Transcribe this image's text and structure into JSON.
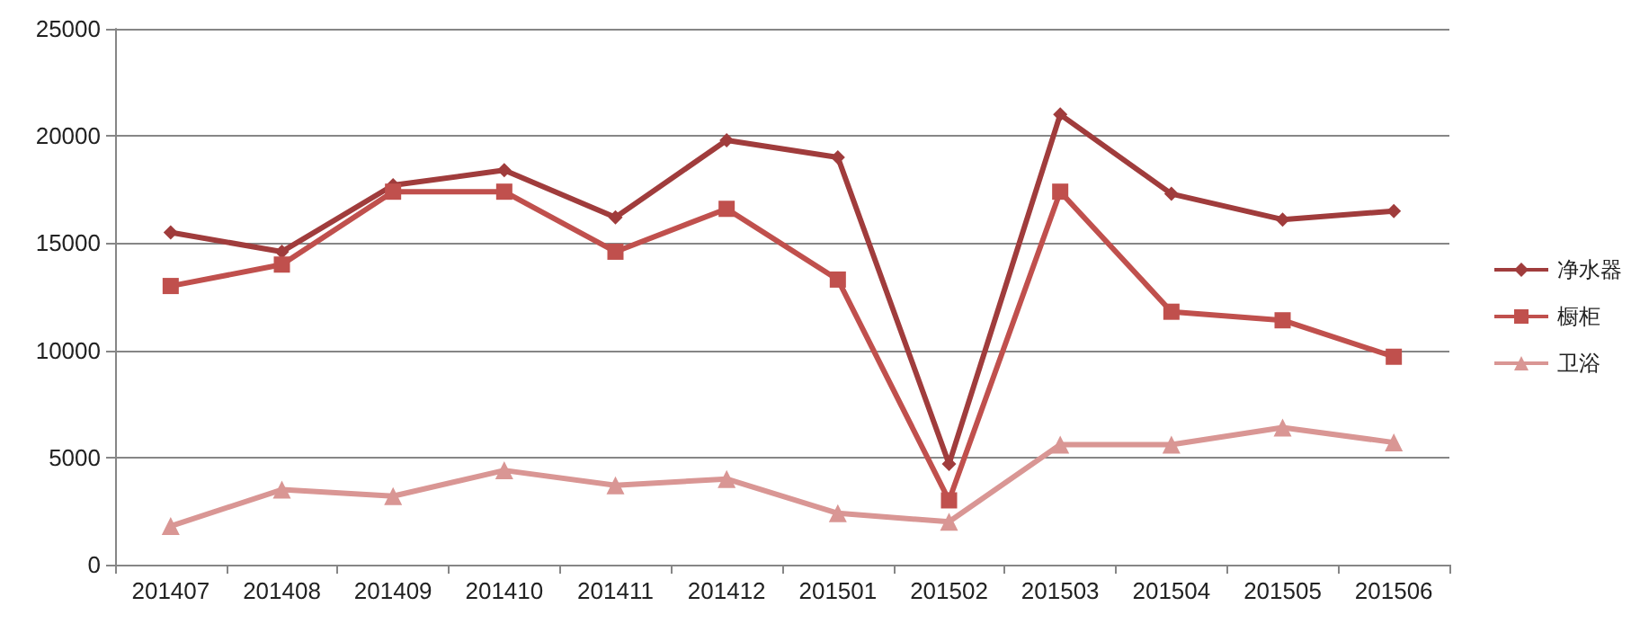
{
  "chart_data": {
    "type": "line",
    "categories": [
      "201407",
      "201408",
      "201409",
      "201410",
      "201411",
      "201412",
      "201501",
      "201502",
      "201503",
      "201504",
      "201505",
      "201506"
    ],
    "series": [
      {
        "name": "净水器",
        "color": "#a03c3c",
        "marker": "diamond",
        "values": [
          15500,
          14600,
          17700,
          18400,
          16200,
          19800,
          19000,
          4700,
          21000,
          17300,
          16100,
          16500
        ]
      },
      {
        "name": "橱柜",
        "color": "#c0504d",
        "marker": "square",
        "values": [
          13000,
          14000,
          17400,
          17400,
          14600,
          16600,
          13300,
          3000,
          17400,
          11800,
          11400,
          9700
        ]
      },
      {
        "name": "卫浴",
        "color": "#d99694",
        "marker": "triangle",
        "values": [
          1800,
          3500,
          3200,
          4400,
          3700,
          4000,
          2400,
          2000,
          5600,
          5600,
          6400,
          5700
        ]
      }
    ],
    "ylim": [
      0,
      25000
    ],
    "yticks": [
      0,
      5000,
      10000,
      15000,
      20000,
      25000
    ],
    "grid": "y",
    "legend": "right"
  }
}
